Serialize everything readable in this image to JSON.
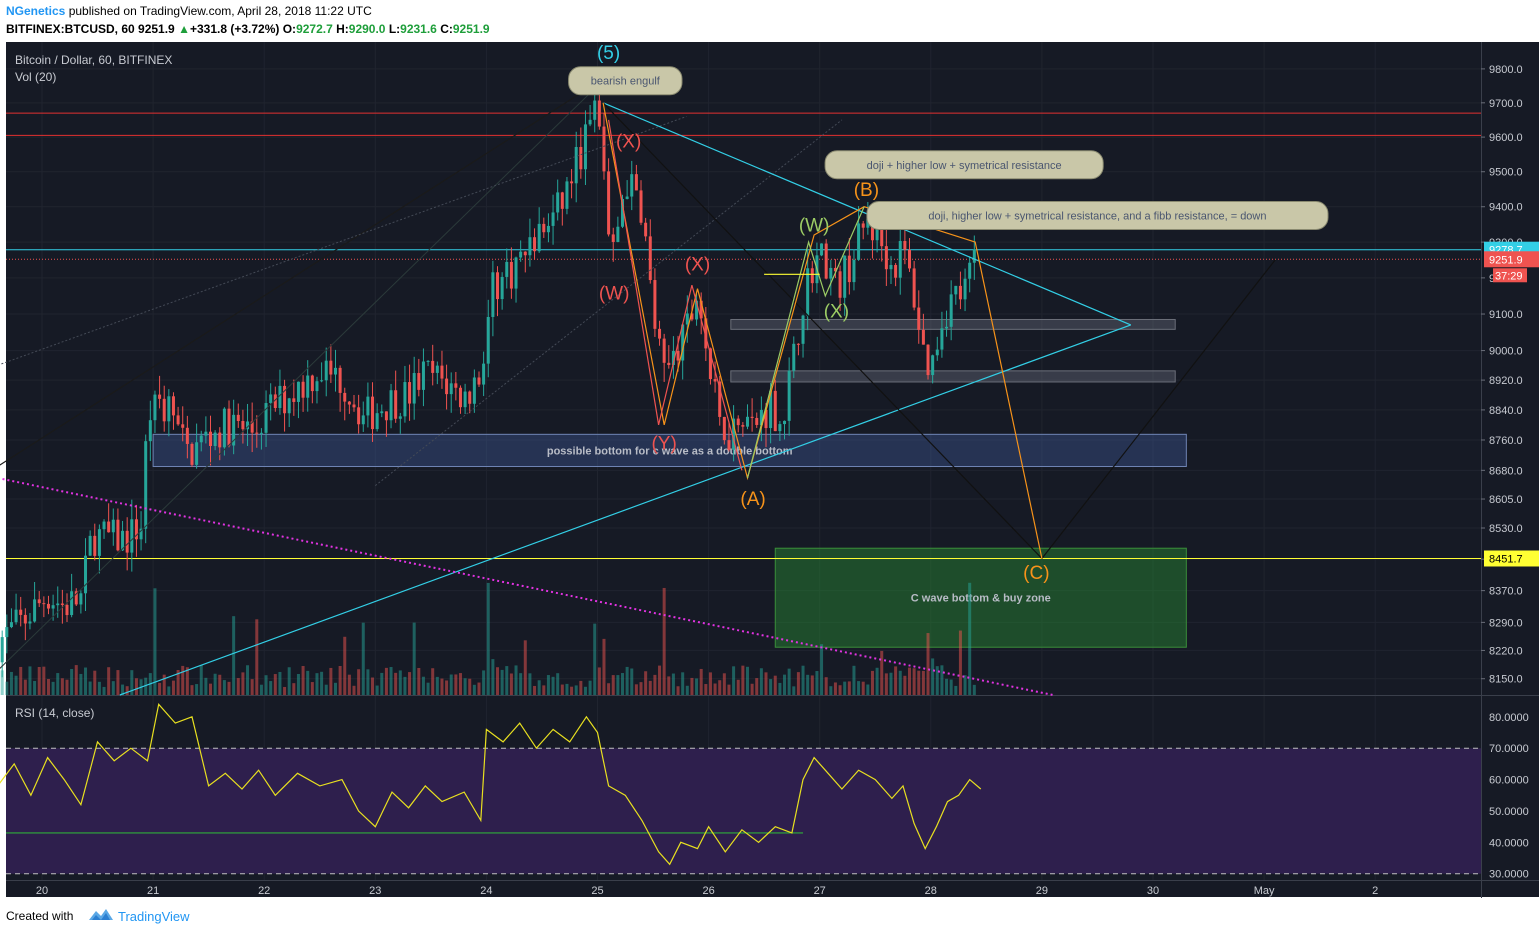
{
  "header": {
    "author": "NGenetics",
    "published_text": " published on TradingView.com, April 28, 2018 11:22 UTC",
    "symbol": "BITFINEX:BTCUSD, 60",
    "last": "9251.9",
    "change": "+331.8 (+3.72%)",
    "o_label": "O:",
    "o_val": "9272.7",
    "h_label": "H:",
    "h_val": "9290.0",
    "l_label": "L:",
    "l_val": "9231.6",
    "c_label": "C:",
    "c_val": "9251.9"
  },
  "pane": {
    "title": "Bitcoin / Dollar, 60, BITFINEX",
    "vol_label": "Vol (20)",
    "rsi_label": "RSI (14, close)"
  },
  "footer": {
    "created_with": "Created with",
    "brand": "TradingView"
  },
  "colors": {
    "background": "#161a25",
    "up": "#26a69a",
    "down": "#ef5350",
    "cyan": "#33cfe6",
    "yellow": "#ffff33",
    "orange": "#f7931a",
    "magenta": "#e233e2",
    "rsi_line": "#e8e020",
    "rsi_band": "#2e1f4d"
  },
  "chart_data": {
    "type": "candlestick",
    "title": "Bitcoin / Dollar, 60, BITFINEX",
    "xlabel": "",
    "ylabel": "",
    "x_ticks": [
      "20",
      "21",
      "22",
      "23",
      "24",
      "25",
      "26",
      "27",
      "28",
      "29",
      "30",
      "May",
      "2"
    ],
    "y_ticks": [
      "9800.0",
      "9700.0",
      "9600.0",
      "9500.0",
      "9400.0",
      "9300.0",
      "9200.0",
      "9100.0",
      "9000.0",
      "8920.0",
      "8840.0",
      "8760.0",
      "8680.0",
      "8605.0",
      "8530.0",
      "8450.0",
      "8370.0",
      "8290.0",
      "8220.0",
      "8150.0"
    ],
    "ylim": [
      8110,
      9880
    ],
    "log_scale": true,
    "grid": true,
    "price_path": [
      [
        19.6,
        8240
      ],
      [
        19.85,
        8300
      ],
      [
        20.05,
        8360
      ],
      [
        20.2,
        8330
      ],
      [
        20.35,
        8350
      ],
      [
        20.45,
        8510
      ],
      [
        20.75,
        8500
      ],
      [
        20.9,
        8540
      ],
      [
        20.95,
        8830
      ],
      [
        21.15,
        8850
      ],
      [
        21.3,
        8720
      ],
      [
        21.5,
        8770
      ],
      [
        21.7,
        8800
      ],
      [
        21.9,
        8780
      ],
      [
        22.05,
        8840
      ],
      [
        22.3,
        8900
      ],
      [
        22.5,
        8950
      ],
      [
        22.7,
        8920
      ],
      [
        22.9,
        8820
      ],
      [
        23.1,
        8860
      ],
      [
        23.3,
        8880
      ],
      [
        23.45,
        8940
      ],
      [
        23.6,
        8920
      ],
      [
        23.8,
        8870
      ],
      [
        23.95,
        8940
      ],
      [
        24.05,
        9170
      ],
      [
        24.25,
        9230
      ],
      [
        24.45,
        9310
      ],
      [
        24.65,
        9390
      ],
      [
        24.85,
        9560
      ],
      [
        24.98,
        9680
      ],
      [
        25.05,
        9560
      ],
      [
        25.12,
        9220
      ],
      [
        25.25,
        9480
      ],
      [
        25.4,
        9400
      ],
      [
        25.5,
        9100
      ],
      [
        25.6,
        8920
      ],
      [
        25.75,
        9010
      ],
      [
        25.85,
        9100
      ],
      [
        25.9,
        9170
      ],
      [
        26.0,
        8960
      ],
      [
        26.1,
        8800
      ],
      [
        26.2,
        8780
      ],
      [
        26.3,
        8850
      ],
      [
        26.4,
        8790
      ],
      [
        26.55,
        8860
      ],
      [
        26.65,
        8810
      ],
      [
        26.75,
        8940
      ],
      [
        26.85,
        9150
      ],
      [
        26.95,
        9250
      ],
      [
        27.05,
        9260
      ],
      [
        27.15,
        9170
      ],
      [
        27.3,
        9260
      ],
      [
        27.42,
        9360
      ],
      [
        27.55,
        9300
      ],
      [
        27.65,
        9230
      ],
      [
        27.75,
        9280
      ],
      [
        27.85,
        9150
      ],
      [
        27.93,
        9000
      ],
      [
        28.0,
        8950
      ],
      [
        28.1,
        9090
      ],
      [
        28.2,
        9150
      ],
      [
        28.3,
        9160
      ],
      [
        28.4,
        9252
      ]
    ],
    "volume_spikes": [
      {
        "x": 21.0,
        "note": "bar"
      },
      {
        "x": 24.0,
        "note": "bar"
      },
      {
        "x": 25.6,
        "note": "bar"
      },
      {
        "x": 28.35,
        "note": "bar"
      }
    ],
    "price_labels": [
      {
        "value": 9278.7,
        "label": "9278.7",
        "color": "#33cfe6"
      },
      {
        "value": 9251.9,
        "label": "9251.9",
        "color": "#ef5350"
      },
      {
        "value": 8451.7,
        "label": "8451.7",
        "color": "#ffff33"
      }
    ],
    "countdown": "37:29",
    "horizontal_lines": [
      {
        "value": 9670,
        "color": "#e33030"
      },
      {
        "value": 9605,
        "color": "#e33030"
      },
      {
        "value": 8451.7,
        "color": "#ffff33"
      },
      {
        "value": 9278.7,
        "color": "#33cfe6"
      }
    ],
    "zones": [
      {
        "label": "possible bottom for c wave as a double bottom",
        "x1": 21.0,
        "x2": 30.3,
        "y1": 8775,
        "y2": 8690
      },
      {
        "label": "C wave bottom & buy zone",
        "x1": 26.6,
        "x2": 30.3,
        "y1": 8478,
        "y2": 8228
      },
      {
        "label": "",
        "x1": 26.2,
        "x2": 30.2,
        "y1": 9085,
        "y2": 9058
      },
      {
        "label": "",
        "x1": 26.2,
        "x2": 30.2,
        "y1": 8945,
        "y2": 8915
      }
    ],
    "callouts": [
      {
        "text": "bearish engulf",
        "x": 25.25,
        "y": 9765
      },
      {
        "text": "doji + higher low + symetrical resistance",
        "x": 28.3,
        "y": 9520
      },
      {
        "text": "doji, higher low + symetrical resistance, and a fibb resistance, = down",
        "x": 29.5,
        "y": 9375
      }
    ],
    "wave_labels": [
      {
        "text": "(5)",
        "x": 25.1,
        "y": 9830,
        "color": "#33cfe6"
      },
      {
        "text": "(X)",
        "x": 25.28,
        "y": 9570,
        "color": "#ef5350"
      },
      {
        "text": "(W)",
        "x": 25.15,
        "y": 9140,
        "color": "#ef5350"
      },
      {
        "text": "(X)",
        "x": 25.9,
        "y": 9220,
        "color": "#ef5350"
      },
      {
        "text": "(Y)",
        "x": 25.6,
        "y": 8735,
        "color": "#ef5350"
      },
      {
        "text": "(A)",
        "x": 26.4,
        "y": 8590,
        "color": "#f7931a"
      },
      {
        "text": "(W)",
        "x": 26.95,
        "y": 9330,
        "color": "#9ccc65"
      },
      {
        "text": "(X)",
        "x": 27.15,
        "y": 9090,
        "color": "#9ccc65"
      },
      {
        "text": "(B)",
        "x": 27.42,
        "y": 9430,
        "color": "#f7931a"
      },
      {
        "text": "(C)",
        "x": 28.95,
        "y": 8400,
        "color": "#f7931a"
      }
    ],
    "rsi": {
      "label": "RSI (14, close)",
      "y_ticks": [
        "80.0000",
        "70.0000",
        "60.0000",
        "50.0000",
        "40.0000",
        "30.0000"
      ],
      "ylim": [
        28,
        86
      ],
      "overbought": 70,
      "oversold": 30,
      "support_line": 43,
      "values": [
        [
          19.6,
          58
        ],
        [
          19.75,
          65
        ],
        [
          19.9,
          55
        ],
        [
          20.05,
          67
        ],
        [
          20.2,
          60
        ],
        [
          20.35,
          52
        ],
        [
          20.5,
          72
        ],
        [
          20.65,
          66
        ],
        [
          20.8,
          70
        ],
        [
          20.95,
          66
        ],
        [
          21.05,
          84
        ],
        [
          21.2,
          78
        ],
        [
          21.35,
          80
        ],
        [
          21.5,
          58
        ],
        [
          21.65,
          62
        ],
        [
          21.8,
          57
        ],
        [
          21.95,
          63
        ],
        [
          22.1,
          55
        ],
        [
          22.3,
          62
        ],
        [
          22.5,
          58
        ],
        [
          22.7,
          60
        ],
        [
          22.85,
          50
        ],
        [
          23.0,
          45
        ],
        [
          23.15,
          56
        ],
        [
          23.3,
          51
        ],
        [
          23.45,
          58
        ],
        [
          23.6,
          53
        ],
        [
          23.8,
          56
        ],
        [
          23.95,
          47
        ],
        [
          24.0,
          76
        ],
        [
          24.15,
          72
        ],
        [
          24.3,
          78
        ],
        [
          24.45,
          70
        ],
        [
          24.6,
          76
        ],
        [
          24.75,
          72
        ],
        [
          24.9,
          80
        ],
        [
          25.0,
          75
        ],
        [
          25.1,
          58
        ],
        [
          25.25,
          55
        ],
        [
          25.4,
          47
        ],
        [
          25.55,
          37
        ],
        [
          25.65,
          33
        ],
        [
          25.75,
          40
        ],
        [
          25.9,
          38
        ],
        [
          26.0,
          45
        ],
        [
          26.15,
          37
        ],
        [
          26.3,
          44
        ],
        [
          26.45,
          40
        ],
        [
          26.6,
          45
        ],
        [
          26.75,
          43
        ],
        [
          26.85,
          60
        ],
        [
          26.95,
          67
        ],
        [
          27.05,
          63
        ],
        [
          27.2,
          57
        ],
        [
          27.35,
          63
        ],
        [
          27.5,
          60
        ],
        [
          27.65,
          54
        ],
        [
          27.75,
          58
        ],
        [
          27.85,
          46
        ],
        [
          27.95,
          38
        ],
        [
          28.05,
          45
        ],
        [
          28.15,
          53
        ],
        [
          28.25,
          55
        ],
        [
          28.35,
          60
        ],
        [
          28.45,
          57
        ]
      ]
    }
  }
}
